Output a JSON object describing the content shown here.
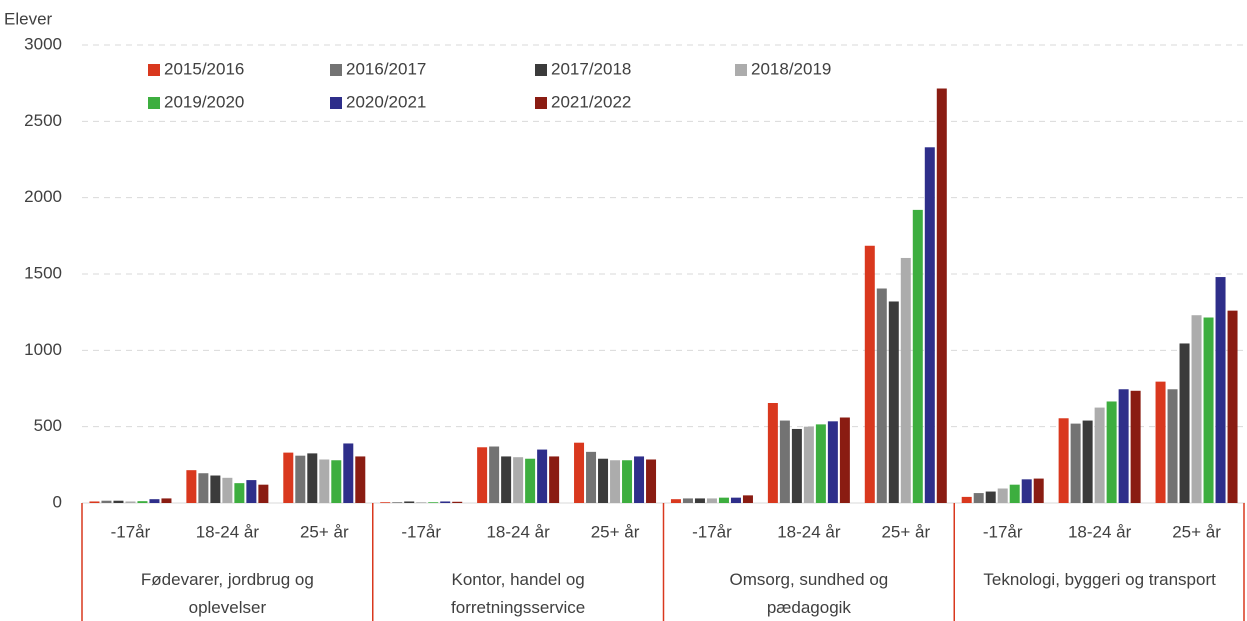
{
  "chart_data": {
    "type": "bar",
    "y_label": "Elever",
    "groups": [
      "Fødevarer, jordbrug og oplevelser",
      "Kontor, handel og forretningsservice",
      "Omsorg, sundhed og pædagogik",
      "Teknologi, byggeri og transport"
    ],
    "categories": [
      "-17år",
      "18-24 år",
      "25+ år",
      "-17år",
      "18-24 år",
      "25+ år",
      "-17år",
      "18-24 år",
      "25+ år",
      "-17år",
      "18-24 år",
      "25+ år"
    ],
    "series": [
      {
        "name": "2015/2016",
        "color": "#d9381e",
        "values": [
          10,
          215,
          330,
          5,
          365,
          395,
          25,
          655,
          1685,
          40,
          555,
          795
        ]
      },
      {
        "name": "2016/2017",
        "color": "#737373",
        "values": [
          15,
          195,
          310,
          5,
          370,
          335,
          30,
          540,
          1405,
          65,
          520,
          745
        ]
      },
      {
        "name": "2017/2018",
        "color": "#3b3b3b",
        "values": [
          15,
          180,
          325,
          10,
          305,
          290,
          30,
          485,
          1320,
          75,
          540,
          1045
        ]
      },
      {
        "name": "2018/2019",
        "color": "#acacac",
        "values": [
          10,
          165,
          285,
          5,
          300,
          280,
          30,
          500,
          1605,
          95,
          625,
          1230
        ]
      },
      {
        "name": "2019/2020",
        "color": "#3dae3f",
        "values": [
          12,
          130,
          280,
          5,
          290,
          280,
          35,
          515,
          1920,
          120,
          665,
          1215
        ]
      },
      {
        "name": "2020/2021",
        "color": "#2e2e8a",
        "values": [
          25,
          150,
          390,
          10,
          350,
          305,
          35,
          535,
          2330,
          155,
          745,
          1480
        ]
      },
      {
        "name": "2021/2022",
        "color": "#8a1c12",
        "values": [
          30,
          120,
          305,
          8,
          305,
          285,
          50,
          560,
          2715,
          160,
          735,
          1260
        ]
      }
    ],
    "ylim": [
      0,
      3000
    ],
    "yticks": [
      0,
      500,
      1000,
      1500,
      2000,
      2500,
      3000
    ],
    "grid": true
  }
}
